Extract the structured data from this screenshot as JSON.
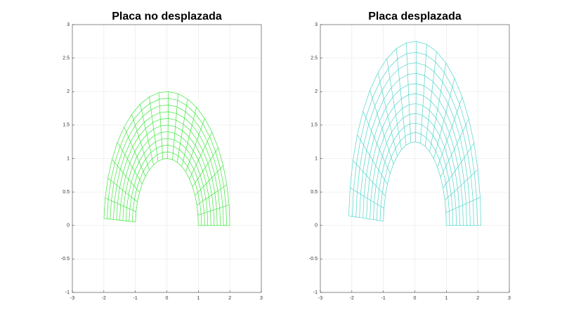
{
  "chart_data": [
    {
      "type": "polar-mesh",
      "title": "Placa no desplazada",
      "color": "#3de83d",
      "xlim": [
        -3,
        3
      ],
      "ylim": [
        -1,
        3
      ],
      "grid": true,
      "xticks": [
        -3,
        -2,
        -1,
        0,
        1,
        2,
        3
      ],
      "yticks": [
        -1,
        -0.5,
        0,
        0.5,
        1,
        1.5,
        2,
        2.5,
        3
      ],
      "radii": [
        1,
        1.1,
        1.2,
        1.3,
        1.4,
        1.5,
        1.6,
        1.7,
        1.8,
        1.9,
        2
      ],
      "angles": [
        0,
        8.85,
        17.7,
        26.55,
        35.4,
        44.25,
        53.1,
        61.95,
        70.8,
        79.65,
        88.5,
        97.35,
        106.2,
        115.05,
        123.9,
        132.75,
        141.6,
        150.45,
        159.3,
        168.15,
        177
      ]
    },
    {
      "type": "polar-mesh",
      "title": "Placa desplazada",
      "color": "#52d6cc",
      "xlim": [
        -3,
        3
      ],
      "ylim": [
        -1,
        3
      ],
      "grid": true,
      "xticks": [
        -3,
        -2,
        -1,
        0,
        1,
        2,
        3
      ],
      "yticks": [
        -1,
        -0.5,
        0,
        0.5,
        1,
        1.5,
        2,
        2.5,
        3
      ],
      "radii": [
        1,
        1.1,
        1.2,
        1.3,
        1.4,
        1.5,
        1.6,
        1.7,
        1.8,
        1.9,
        2
      ],
      "angles": [
        0,
        8.85,
        17.7,
        26.55,
        35.4,
        44.25,
        53.1,
        61.95,
        70.8,
        79.65,
        88.5,
        97.35,
        106.2,
        115.05,
        123.9,
        132.75,
        141.6,
        150.45,
        159.3,
        168.15,
        177
      ],
      "x_scale": [
        1,
        1.005,
        1.01,
        1.015,
        1.02,
        1.025,
        1.03,
        1.035,
        1.04,
        1.045,
        1.05
      ],
      "y_scale": [
        1.25,
        1.2625,
        1.275,
        1.2875,
        1.3,
        1.3125,
        1.325,
        1.3375,
        1.35,
        1.3625,
        1.375
      ]
    }
  ]
}
